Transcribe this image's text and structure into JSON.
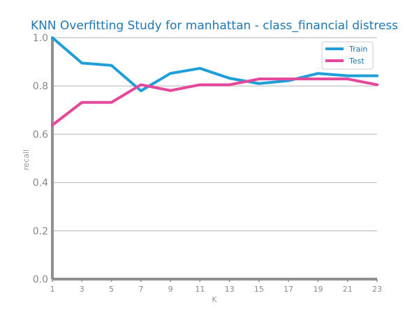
{
  "chart_data": {
    "type": "line",
    "title": "KNN Overfitting Study for manhattan - class_financial distress",
    "xlabel": "K",
    "ylabel": "recall",
    "x": [
      1,
      3,
      5,
      7,
      9,
      11,
      13,
      15,
      17,
      19,
      21,
      23
    ],
    "xlim": [
      1,
      23
    ],
    "ylim": [
      0.0,
      1.0
    ],
    "yticks": [
      "0.0",
      "0.2",
      "0.4",
      "0.6",
      "0.8",
      "1.0"
    ],
    "xticks": [
      "1",
      "3",
      "5",
      "7",
      "9",
      "11",
      "13",
      "15",
      "17",
      "19",
      "21",
      "23"
    ],
    "grid": "horizontal",
    "legend_position": "top-right",
    "series": [
      {
        "name": "Train",
        "color": "#1f9ed8",
        "values": [
          1.0,
          0.895,
          0.885,
          0.78,
          0.852,
          0.873,
          0.832,
          0.81,
          0.822,
          0.852,
          0.842,
          0.842
        ]
      },
      {
        "name": "Test",
        "color": "#e5489a",
        "values": [
          0.638,
          0.732,
          0.732,
          0.805,
          0.781,
          0.805,
          0.805,
          0.829,
          0.829,
          0.829,
          0.829,
          0.805
        ]
      }
    ]
  }
}
